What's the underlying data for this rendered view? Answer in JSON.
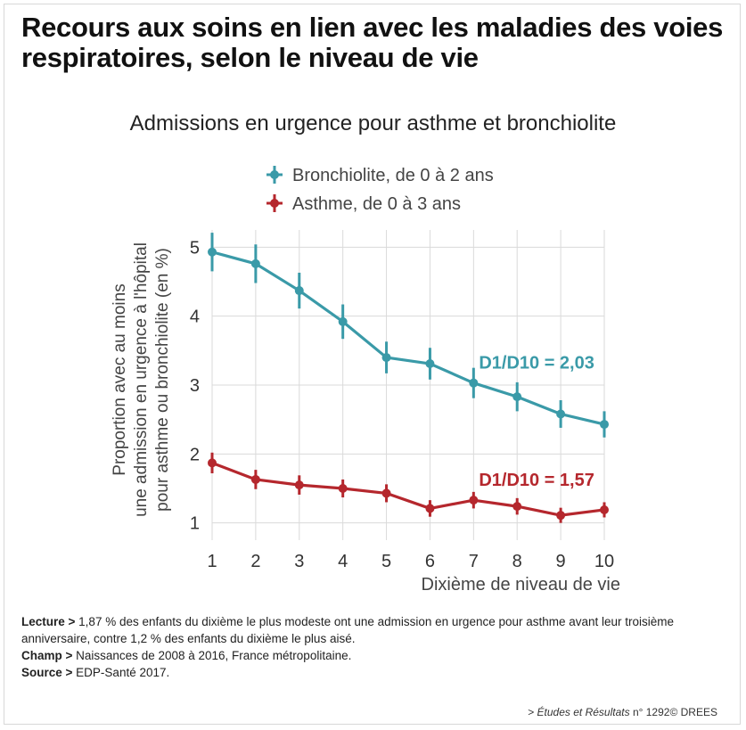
{
  "title": "Recours aux soins en lien avec les maladies des voies respiratoires, selon le niveau de vie",
  "chart_data": {
    "type": "line",
    "title": "Admissions en urgence pour asthme et bronchiolite",
    "xlabel": "Dixième de niveau de vie",
    "ylabel": "Proportion avec au moins une admission en urgence à l'hôpital pour asthme ou bronchiolite (en %)",
    "ylabel_lines": [
      "Proportion avec au moins",
      "une admission en urgence à l'hôpital",
      "pour asthme ou bronchiolite (en %)"
    ],
    "x": [
      1,
      2,
      3,
      4,
      5,
      6,
      7,
      8,
      9,
      10
    ],
    "xlim": [
      1,
      10
    ],
    "ylim": [
      0.75,
      5.25
    ],
    "yticks": [
      1,
      2,
      3,
      4,
      5
    ],
    "grid": true,
    "legend_position": "top",
    "series": [
      {
        "name": "Bronchiolite, de 0 à 2 ans",
        "color": "#3a9aa8",
        "values": [
          4.93,
          4.76,
          4.37,
          3.92,
          3.4,
          3.31,
          3.03,
          2.83,
          2.58,
          2.43
        ],
        "error": [
          0.28,
          0.28,
          0.26,
          0.25,
          0.23,
          0.23,
          0.22,
          0.21,
          0.2,
          0.19
        ],
        "annotation": "D1/D10 = 2,03"
      },
      {
        "name": "Asthme, de 0 à 3 ans",
        "color": "#b5272d",
        "values": [
          1.87,
          1.63,
          1.55,
          1.5,
          1.43,
          1.21,
          1.33,
          1.24,
          1.11,
          1.19
        ],
        "error": [
          0.15,
          0.14,
          0.14,
          0.13,
          0.13,
          0.12,
          0.12,
          0.12,
          0.11,
          0.11
        ],
        "annotation": "D1/D10 = 1,57"
      }
    ]
  },
  "notes": {
    "lecture_label": "Lecture >",
    "lecture_text": "1,87 % des enfants du dixième le plus modeste ont une admission en urgence pour asthme avant leur troisième anniversaire, contre 1,2 % des enfants du dixième le plus aisé.",
    "champ_label": "Champ >",
    "champ_text": "Naissances de 2008 à 2016, France métropolitaine.",
    "source_label": "Source >",
    "source_text": "EDP-Santé 2017."
  },
  "footer": {
    "prefix": ">",
    "publication": "Études et Résultats",
    "number": "n° 1292",
    "publisher": "© DREES"
  }
}
